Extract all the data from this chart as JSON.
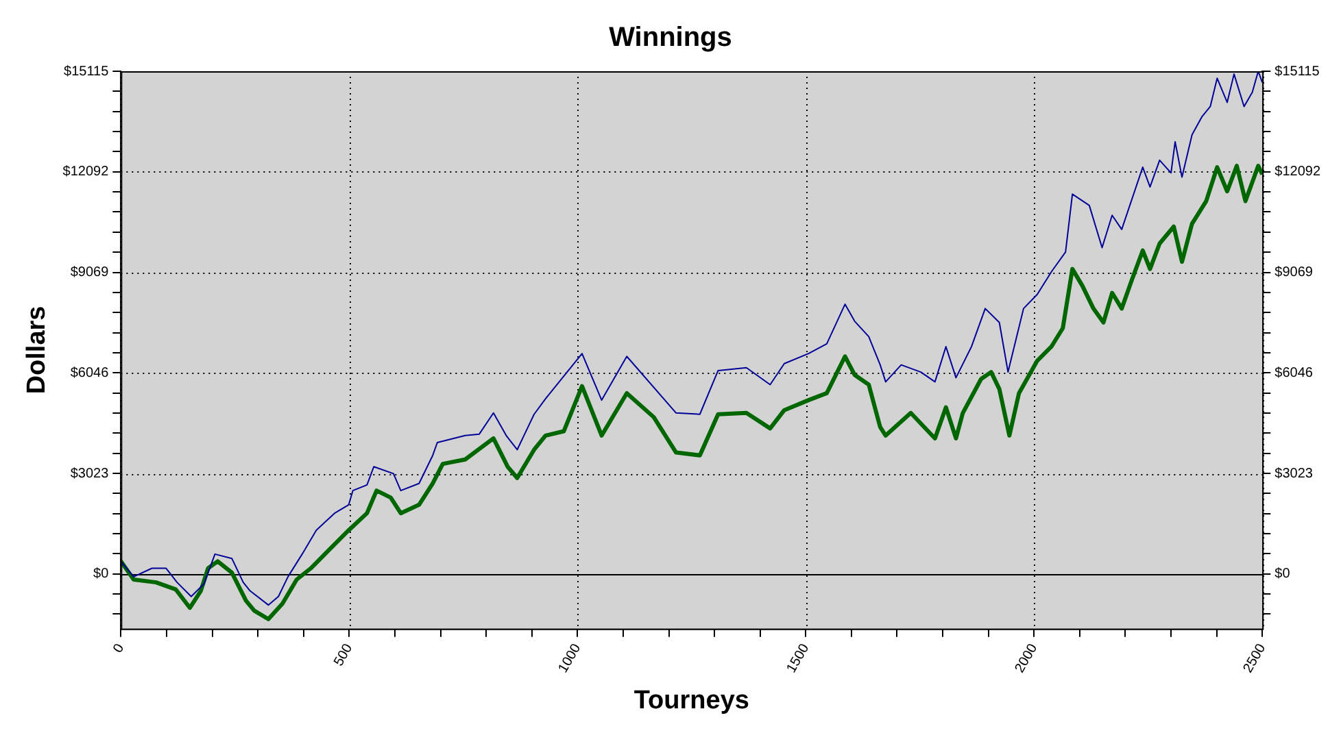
{
  "chart_data": {
    "type": "line",
    "title": "Winnings",
    "xlabel": "Tourneys",
    "ylabel": "Dollars",
    "xlim": [
      0,
      2500
    ],
    "xticks": [
      0,
      {
        "value": 100,
        "label": null
      },
      {
        "value": 200,
        "label": null
      },
      {
        "value": 300,
        "label": null
      },
      {
        "value": 400,
        "label": null
      },
      500,
      {
        "value": 600,
        "label": null
      },
      {
        "value": 700,
        "label": null
      },
      {
        "value": 800,
        "label": null
      },
      {
        "value": 900,
        "label": null
      },
      1000,
      {
        "value": 1100,
        "label": null
      },
      {
        "value": 1200,
        "label": null
      },
      {
        "value": 1300,
        "label": null
      },
      {
        "value": 1400,
        "label": null
      },
      1500,
      {
        "value": 1600,
        "label": null
      },
      {
        "value": 1700,
        "label": null
      },
      {
        "value": 1800,
        "label": null
      },
      {
        "value": 1900,
        "label": null
      },
      2000,
      {
        "value": 2100,
        "label": null
      },
      {
        "value": 2200,
        "label": null
      },
      {
        "value": 2300,
        "label": null
      },
      {
        "value": 2400,
        "label": null
      },
      2500
    ],
    "ylim": [
      -1650,
      15115
    ],
    "yticks": [
      {
        "value": -1209.2,
        "label": null
      },
      {
        "value": -604.6,
        "label": null
      },
      {
        "value": 0,
        "label": "$0"
      },
      {
        "value": 604.6,
        "label": null
      },
      {
        "value": 1209.2,
        "label": null
      },
      {
        "value": 1813.8,
        "label": null
      },
      {
        "value": 2418.4,
        "label": null
      },
      {
        "value": 3023,
        "label": "$3023"
      },
      {
        "value": 3627.6,
        "label": null
      },
      {
        "value": 4232.2,
        "label": null
      },
      {
        "value": 4836.8,
        "label": null
      },
      {
        "value": 5441.4,
        "label": null
      },
      {
        "value": 6046,
        "label": "$6046"
      },
      {
        "value": 6650.6,
        "label": null
      },
      {
        "value": 7255.2,
        "label": null
      },
      {
        "value": 7859.8,
        "label": null
      },
      {
        "value": 8464.4,
        "label": null
      },
      {
        "value": 9069,
        "label": "$9069"
      },
      {
        "value": 9673.6,
        "label": null
      },
      {
        "value": 10278.2,
        "label": null
      },
      {
        "value": 10882.8,
        "label": null
      },
      {
        "value": 11487.4,
        "label": null
      },
      {
        "value": 12092,
        "label": "$12092"
      },
      {
        "value": 12696.6,
        "label": null
      },
      {
        "value": 13301.2,
        "label": null
      },
      {
        "value": 13905.8,
        "label": null
      },
      {
        "value": 14510.4,
        "label": null
      },
      {
        "value": 15115,
        "label": "$15115"
      }
    ],
    "y2lim": [
      -1650,
      15115
    ],
    "y2ticks": [
      {
        "value": -1209.2,
        "label": null
      },
      {
        "value": -604.6,
        "label": null
      },
      {
        "value": 0,
        "label": "$0"
      },
      {
        "value": 604.6,
        "label": null
      },
      {
        "value": 1209.2,
        "label": null
      },
      {
        "value": 1813.8,
        "label": null
      },
      {
        "value": 2418.4,
        "label": null
      },
      {
        "value": 3023,
        "label": "$3023"
      },
      {
        "value": 3627.6,
        "label": null
      },
      {
        "value": 4232.2,
        "label": null
      },
      {
        "value": 4836.8,
        "label": null
      },
      {
        "value": 5441.4,
        "label": null
      },
      {
        "value": 6046,
        "label": "$6046"
      },
      {
        "value": 6650.6,
        "label": null
      },
      {
        "value": 7255.2,
        "label": null
      },
      {
        "value": 7859.8,
        "label": null
      },
      {
        "value": 8464.4,
        "label": null
      },
      {
        "value": 9069,
        "label": "$9069"
      },
      {
        "value": 9673.6,
        "label": null
      },
      {
        "value": 10278.2,
        "label": null
      },
      {
        "value": 10882.8,
        "label": null
      },
      {
        "value": 11487.4,
        "label": null
      },
      {
        "value": 12092,
        "label": "$12092"
      },
      {
        "value": 12696.6,
        "label": null
      },
      {
        "value": 13301.2,
        "label": null
      },
      {
        "value": 13905.8,
        "label": null
      },
      {
        "value": 14510.4,
        "label": null
      },
      {
        "value": 15115,
        "label": "$15115"
      }
    ],
    "grid": true,
    "legend": false,
    "marker": "none",
    "line_style": "solid",
    "ref_lines": [
      {
        "axis": "y",
        "value": 0,
        "color": "#000000",
        "line_style": "solid"
      }
    ],
    "series": [
      {
        "color": "#000099",
        "x": [
          0,
          28,
          68,
          99,
          123,
          154,
          182,
          206,
          243,
          268,
          283,
          323,
          345,
          366,
          397,
          428,
          468,
          499,
          508,
          539,
          554,
          597,
          613,
          653,
          683,
          693,
          754,
          785,
          816,
          844,
          868,
          905,
          930,
          1010,
          1053,
          1108,
          1216,
          1268,
          1308,
          1370,
          1422,
          1453,
          1506,
          1546,
          1586,
          1607,
          1638,
          1663,
          1675,
          1709,
          1752,
          1783,
          1807,
          1829,
          1863,
          1893,
          1924,
          1943,
          1977,
          2007,
          2038,
          2069,
          2084,
          2121,
          2149,
          2171,
          2192,
          2238,
          2254,
          2275,
          2300,
          2309,
          2324,
          2346,
          2368,
          2386,
          2401,
          2423,
          2438,
          2460,
          2478,
          2491,
          2500
        ],
        "values": [
          380,
          -85,
          170,
          170,
          -255,
          -680,
          -300,
          595,
          465,
          -255,
          -510,
          -935,
          -680,
          -85,
          595,
          1315,
          1825,
          2080,
          2505,
          2675,
          3225,
          3015,
          2505,
          2720,
          3565,
          3950,
          4160,
          4205,
          4840,
          4160,
          3735,
          4800,
          5265,
          6625,
          5225,
          6540,
          4840,
          4800,
          6115,
          6200,
          5690,
          6325,
          6625,
          6920,
          8110,
          7600,
          7135,
          6285,
          5775,
          6285,
          6070,
          5775,
          6835,
          5900,
          6835,
          7980,
          7560,
          6070,
          7980,
          8405,
          9085,
          9680,
          11420,
          11080,
          9810,
          10785,
          10360,
          12230,
          11635,
          12440,
          12060,
          12995,
          11930,
          13205,
          13755,
          14055,
          14905,
          14180,
          15030,
          14055,
          14480,
          15115,
          14775
        ]
      },
      {
        "color": "#006600",
        "x": [
          0,
          28,
          77,
          120,
          151,
          175,
          191,
          212,
          243,
          274,
          292,
          323,
          354,
          385,
          416,
          459,
          499,
          539,
          560,
          591,
          613,
          653,
          683,
          705,
          754,
          816,
          847,
          868,
          905,
          930,
          970,
          1010,
          1053,
          1108,
          1167,
          1216,
          1268,
          1308,
          1370,
          1422,
          1453,
          1506,
          1546,
          1586,
          1607,
          1638,
          1663,
          1675,
          1730,
          1783,
          1807,
          1829,
          1844,
          1884,
          1906,
          1924,
          1946,
          1967,
          2007,
          2038,
          2063,
          2084,
          2106,
          2130,
          2152,
          2171,
          2192,
          2214,
          2238,
          2254,
          2275,
          2306,
          2324,
          2346,
          2377,
          2401,
          2423,
          2444,
          2463,
          2491,
          2500
        ],
        "values": [
          380,
          -170,
          -255,
          -465,
          -1020,
          -510,
          170,
          380,
          40,
          -805,
          -1105,
          -1360,
          -890,
          -170,
          170,
          765,
          1315,
          1825,
          2505,
          2295,
          1825,
          2080,
          2720,
          3310,
          3440,
          4075,
          3225,
          2885,
          3735,
          4160,
          4290,
          5645,
          4160,
          5435,
          4715,
          3650,
          3565,
          4800,
          4840,
          4375,
          4925,
          5225,
          5435,
          6540,
          5985,
          5690,
          4415,
          4160,
          4840,
          4075,
          5010,
          4075,
          4840,
          5860,
          6070,
          5560,
          4160,
          5435,
          6410,
          6835,
          7390,
          9170,
          8660,
          7980,
          7560,
          8450,
          7980,
          8830,
          9725,
          9170,
          9935,
          10445,
          9385,
          10530,
          11210,
          12230,
          11505,
          12270,
          11210,
          12270,
          12015
        ]
      }
    ]
  }
}
